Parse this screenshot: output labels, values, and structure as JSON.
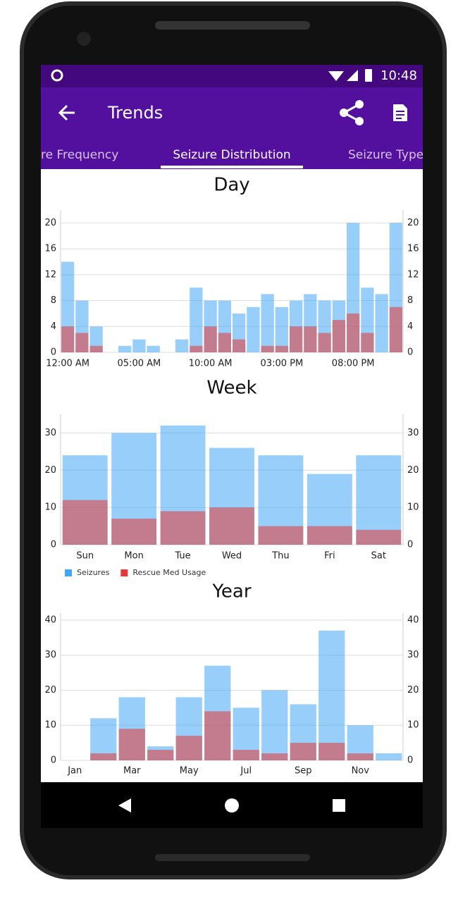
{
  "status_bar": {
    "time": "10:48"
  },
  "app_bar": {
    "title": "Trends"
  },
  "tabs": [
    "re Frequency",
    "Seizure Distribution",
    "Seizure Types"
  ],
  "chart_data": [
    {
      "type": "bar",
      "title": "Day",
      "barmode": "overlay",
      "grid": true,
      "categories": [
        "12:00 AM",
        null,
        null,
        null,
        null,
        "05:00 AM",
        null,
        null,
        null,
        null,
        "10:00 AM",
        null,
        null,
        null,
        null,
        "03:00 PM",
        null,
        null,
        null,
        null,
        "08:00 PM",
        null,
        null,
        null
      ],
      "series": [
        {
          "color": "#42a5f5",
          "values": [
            14,
            8,
            4,
            0,
            1,
            2,
            1,
            0,
            2,
            10,
            8,
            8,
            6,
            7,
            9,
            7,
            8,
            9,
            8,
            8,
            20,
            10,
            9,
            20
          ]
        },
        {
          "color": "#e53935",
          "values": [
            4,
            3,
            1,
            0,
            0,
            0,
            0,
            0,
            0,
            1,
            4,
            3,
            2,
            0,
            1,
            1,
            4,
            4,
            3,
            5,
            6,
            3,
            0,
            7
          ]
        }
      ],
      "ylim": [
        0,
        22
      ],
      "yticks": [
        0,
        4,
        8,
        12,
        16,
        20
      ]
    },
    {
      "type": "bar",
      "title": "Week",
      "barmode": "overlay",
      "grid": true,
      "legend": "bottom-left",
      "categories": [
        "Sun",
        "Mon",
        "Tue",
        "Wed",
        "Thu",
        "Fri",
        "Sat"
      ],
      "series": [
        {
          "name": "Seizures",
          "color": "#42a5f5",
          "values": [
            24,
            30,
            32,
            26,
            24,
            19,
            24
          ]
        },
        {
          "name": "Rescue Med Usage",
          "color": "#e53935",
          "values": [
            12,
            7,
            9,
            10,
            5,
            5,
            4
          ]
        }
      ],
      "ylim": [
        0,
        35
      ],
      "yticks": [
        0,
        10,
        20,
        30
      ]
    },
    {
      "type": "bar",
      "title": "Year",
      "barmode": "overlay",
      "grid": true,
      "categories": [
        "Jan",
        null,
        "Mar",
        null,
        "May",
        null,
        "Jul",
        null,
        "Sep",
        null,
        "Nov",
        null
      ],
      "series": [
        {
          "color": "#42a5f5",
          "values": [
            0,
            12,
            18,
            4,
            18,
            27,
            15,
            20,
            16,
            37,
            10,
            2
          ]
        },
        {
          "color": "#e53935",
          "values": [
            0,
            2,
            9,
            3,
            7,
            14,
            3,
            2,
            5,
            5,
            2,
            0
          ]
        }
      ],
      "ylim": [
        0,
        42
      ],
      "yticks": [
        0,
        10,
        20,
        30,
        40
      ]
    }
  ]
}
